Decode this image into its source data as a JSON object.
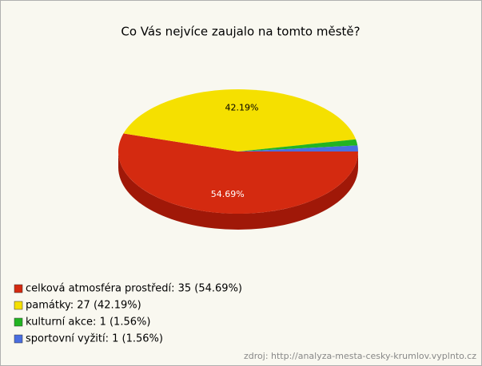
{
  "chart_data": {
    "type": "pie3d",
    "title": "Co Vás nejvíce zaujalo na tomto městě?",
    "categories": [
      "celková atmosféra prostředí",
      "památky",
      "kulturní akce",
      "sportovní vyžití"
    ],
    "values": [
      54.69,
      42.19,
      1.56,
      1.56
    ],
    "value_labels": [
      "54.69%",
      "42.19%",
      null,
      null
    ],
    "legend_labels": [
      "celková atmosféra prostředí: 35 (54.69%)",
      "památky: 27 (42.19%)",
      "kulturní akce: 1 (1.56%)",
      "sportovní vyžití: 1 (1.56%)"
    ],
    "colors": [
      "#d42a10",
      "#f5e000",
      "#22b422",
      "#4a6ee0"
    ],
    "side_colors": [
      "#a01808",
      "#c4b000",
      "#178a17",
      "#3050b0"
    ],
    "source": "zdroj: http://analyza-mesta-cesky-krumlov.vyplnto.cz"
  }
}
